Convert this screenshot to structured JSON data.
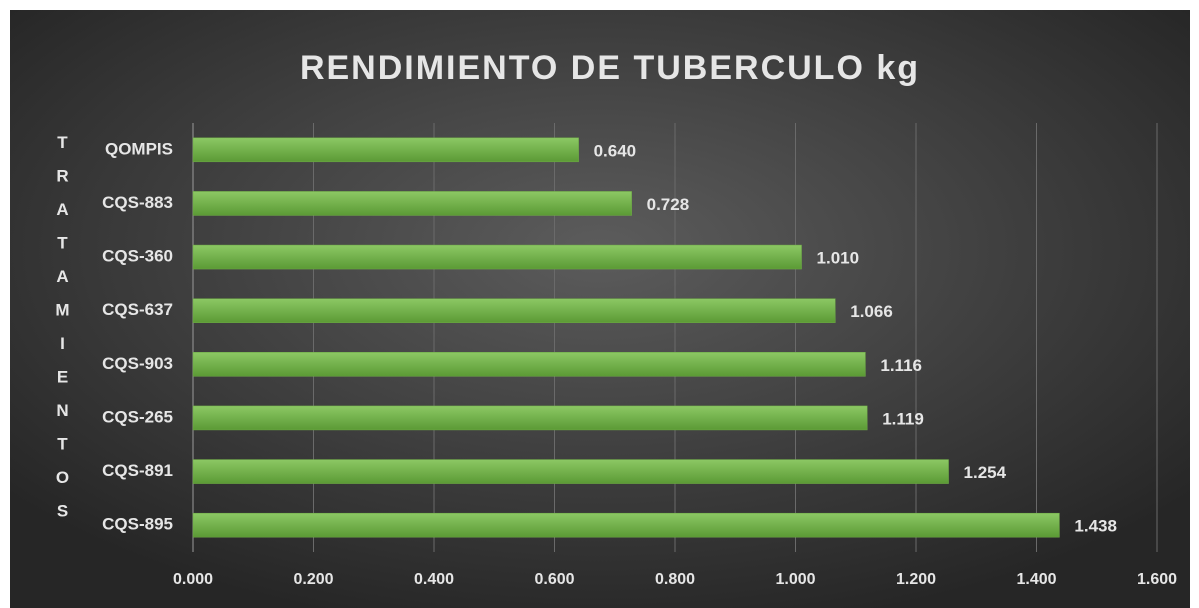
{
  "chart_data": {
    "type": "hbar",
    "title": "RENDIMIENTO DE TUBERCULO kg",
    "y_label": "TRATAMIENTOS",
    "categories": [
      "QOMPIS",
      "CQS-883",
      "CQS-360",
      "CQS-637",
      "CQS-903",
      "CQS-265",
      "CQS-891",
      "CQS-895"
    ],
    "values": [
      0.64,
      0.728,
      1.01,
      1.066,
      1.116,
      1.119,
      1.254,
      1.438
    ],
    "value_labels": [
      "0.640",
      "0.728",
      "1.010",
      "1.066",
      "1.116",
      "1.119",
      "1.254",
      "1.438"
    ],
    "color": "#70ad47",
    "xlim": [
      0,
      1.6
    ],
    "xticks": [
      {
        "value": 0,
        "label": "0.000"
      },
      {
        "value": 0.2,
        "label": "0.200"
      },
      {
        "value": 0.4,
        "label": "0.400"
      },
      {
        "value": 0.6,
        "label": "0.600"
      },
      {
        "value": 0.8,
        "label": "0.800"
      },
      {
        "value": 1,
        "label": "1.000"
      },
      {
        "value": 1.2,
        "label": "1.200"
      },
      {
        "value": 1.4,
        "label": "1.400"
      },
      {
        "value": 1.6,
        "label": "1.600"
      }
    ],
    "grid": true
  }
}
